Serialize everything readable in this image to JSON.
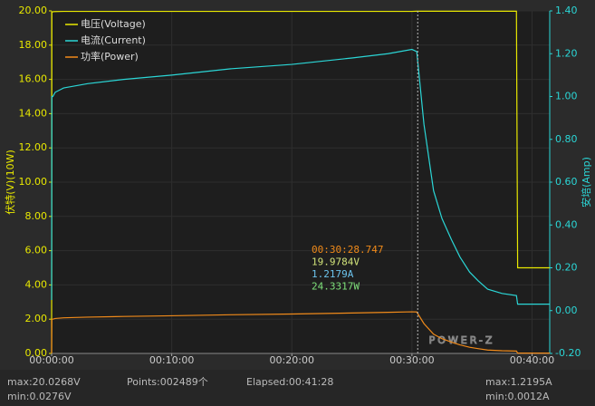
{
  "chart_data": {
    "type": "line",
    "y_label": "伏特(V)(10W)",
    "y2_label": "安培(Amp)",
    "x": [
      0,
      0.02,
      0.1,
      0.3,
      1,
      3,
      6,
      10,
      15,
      20,
      25,
      28,
      30,
      30.4,
      31,
      31.8,
      32.5,
      33.3,
      34,
      34.8,
      35.5,
      36.3,
      37.5,
      38.7,
      38.8,
      40,
      41.47
    ],
    "series": [
      {
        "name": "电压(Voltage)",
        "color": "#e8e800",
        "axis": "y",
        "values": [
          0.03,
          19.9,
          19.95,
          19.96,
          19.97,
          19.97,
          19.97,
          19.97,
          19.97,
          19.97,
          19.97,
          19.97,
          19.97,
          19.98,
          19.98,
          19.98,
          19.98,
          19.98,
          19.98,
          19.98,
          19.98,
          19.98,
          19.98,
          19.98,
          5.0,
          5.0,
          5.0
        ]
      },
      {
        "name": "电流(Current)",
        "color": "#2bd6d6",
        "axis": "y2",
        "values": [
          0.05,
          1.0,
          1.0,
          1.02,
          1.04,
          1.06,
          1.08,
          1.1,
          1.13,
          1.15,
          1.18,
          1.2,
          1.22,
          1.21,
          0.87,
          0.56,
          0.43,
          0.33,
          0.25,
          0.18,
          0.14,
          0.1,
          0.08,
          0.07,
          0.03,
          0.03,
          0.03
        ]
      },
      {
        "name": "功率(Power)",
        "color": "#f08a1a",
        "axis": "y",
        "values": [
          0,
          2.0,
          2.0,
          2.04,
          2.08,
          2.12,
          2.16,
          2.2,
          2.26,
          2.3,
          2.36,
          2.4,
          2.43,
          2.42,
          1.74,
          1.12,
          0.86,
          0.66,
          0.5,
          0.36,
          0.28,
          0.2,
          0.16,
          0.14,
          0.02,
          0.02,
          0.02
        ]
      }
    ],
    "xlim": [
      0,
      41.47
    ],
    "xticks": [
      {
        "value": 0,
        "label": "00:00:00"
      },
      {
        "value": 10,
        "label": "00:10:00"
      },
      {
        "value": 20,
        "label": "00:20:00"
      },
      {
        "value": 30,
        "label": "00:30:00"
      },
      {
        "value": 40,
        "label": "00:40:00"
      }
    ],
    "ylim": [
      0,
      20
    ],
    "yticks": [
      {
        "value": 0,
        "label": "0.00"
      },
      {
        "value": 2,
        "label": "2.00"
      },
      {
        "value": 4,
        "label": "4.00"
      },
      {
        "value": 6,
        "label": "6.00"
      },
      {
        "value": 8,
        "label": "8.00"
      },
      {
        "value": 10,
        "label": "10.00"
      },
      {
        "value": 12,
        "label": "12.00"
      },
      {
        "value": 14,
        "label": "14.00"
      },
      {
        "value": 16,
        "label": "16.00"
      },
      {
        "value": 18,
        "label": "18.00"
      },
      {
        "value": 20,
        "label": "20.00"
      }
    ],
    "y2lim": [
      -0.2,
      1.4
    ],
    "y2ticks": [
      {
        "value": -0.2,
        "label": "-0.20"
      },
      {
        "value": 0,
        "label": "0.00"
      },
      {
        "value": 0.2,
        "label": "0.20"
      },
      {
        "value": 0.4,
        "label": "0.40"
      },
      {
        "value": 0.6,
        "label": "0.60"
      },
      {
        "value": 0.8,
        "label": "0.80"
      },
      {
        "value": 1.0,
        "label": "1.00"
      },
      {
        "value": 1.2,
        "label": "1.20"
      },
      {
        "value": 1.4,
        "label": "1.40"
      }
    ],
    "grid": true,
    "legend": "top-left",
    "cursor": {
      "x": 30.48,
      "time": "00:30:28.747",
      "voltage": "19.9784V",
      "current": "1.2179A",
      "power": "24.3317W"
    },
    "watermark": "POWER-Z"
  },
  "footer": {
    "v_max": "max:20.0268V",
    "v_min": "min:0.0276V",
    "points": "Points:002489个",
    "elapsed": "Elapsed:00:41:28",
    "a_max": "max:1.2195A",
    "a_min": "min:0.0012A"
  }
}
